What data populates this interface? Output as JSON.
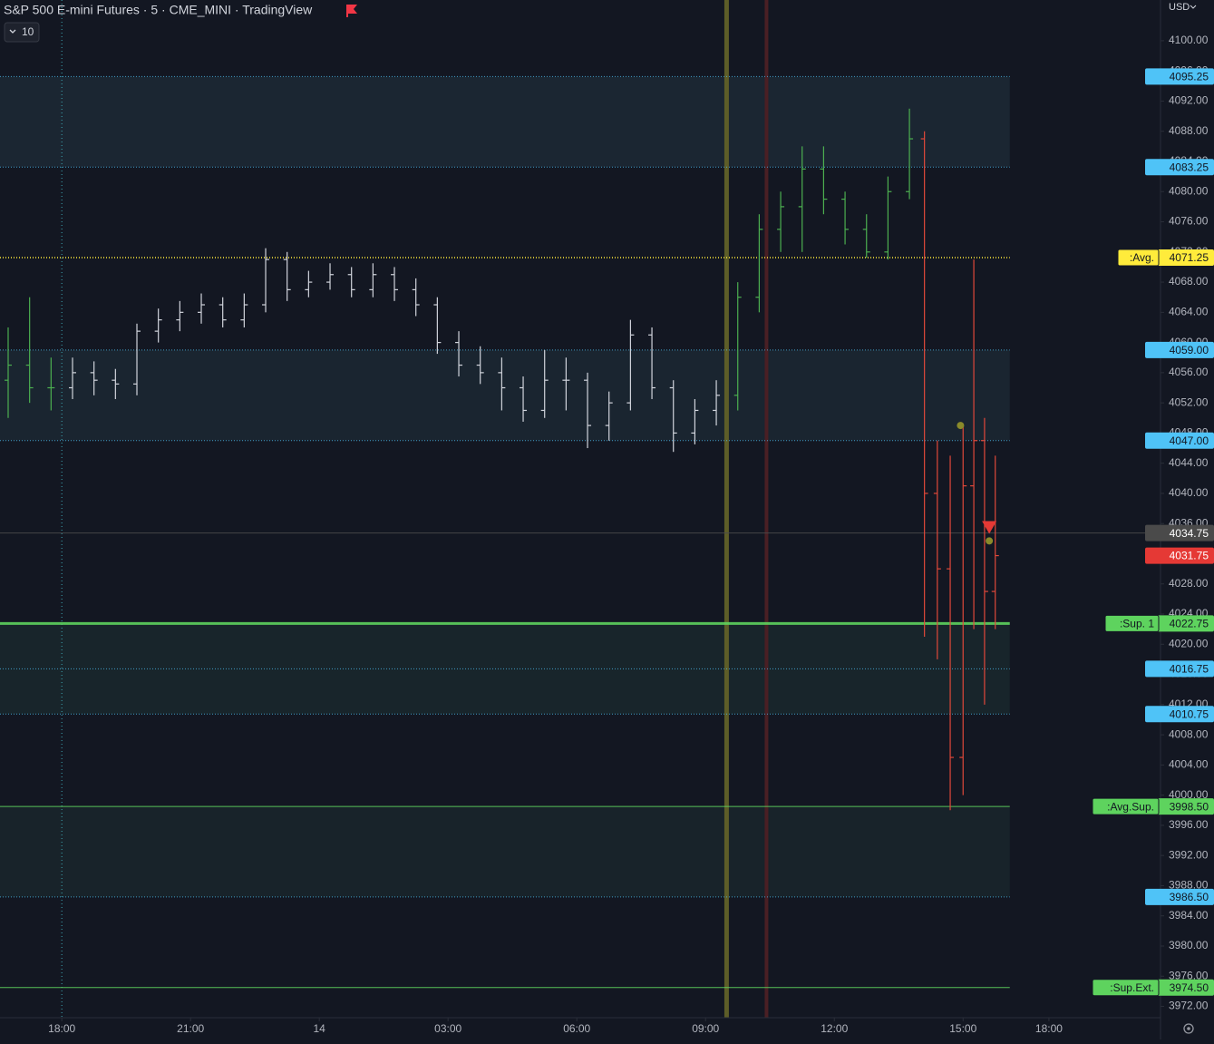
{
  "chart_data": {
    "type": "ohlc",
    "title": "S&P 500 E-mini Futures · 5 · CME_MINI · TradingView",
    "interval_button": "10",
    "currency": "USD",
    "xlim": [
      -1.44,
      25.6
    ],
    "ylim": [
      3970.5,
      4105.4
    ],
    "xticks": [
      {
        "value": 0,
        "label": "18:00"
      },
      {
        "value": 3,
        "label": "21:00"
      },
      {
        "value": 6,
        "label": "14"
      },
      {
        "value": 9,
        "label": "03:00"
      },
      {
        "value": 12,
        "label": "06:00"
      },
      {
        "value": 15,
        "label": "09:00"
      },
      {
        "value": 18,
        "label": "12:00"
      },
      {
        "value": 21,
        "label": "15:00"
      },
      {
        "value": 23,
        "label": "18:00"
      }
    ],
    "yticks": [
      {
        "value": 4100,
        "label": "4100.00"
      },
      {
        "value": 4096,
        "label": "4096.00"
      },
      {
        "value": 4092,
        "label": "4092.00"
      },
      {
        "value": 4088,
        "label": "4088.00"
      },
      {
        "value": 4084,
        "label": "4084.00"
      },
      {
        "value": 4080,
        "label": "4080.00"
      },
      {
        "value": 4076,
        "label": "4076.00"
      },
      {
        "value": 4072,
        "label": "4072.00"
      },
      {
        "value": 4068,
        "label": "4068.00"
      },
      {
        "value": 4064,
        "label": "4064.00"
      },
      {
        "value": 4060,
        "label": "4060.00"
      },
      {
        "value": 4056,
        "label": "4056.00"
      },
      {
        "value": 4052,
        "label": "4052.00"
      },
      {
        "value": 4048,
        "label": "4048.00"
      },
      {
        "value": 4044,
        "label": "4044.00"
      },
      {
        "value": 4040,
        "label": "4040.00"
      },
      {
        "value": 4036,
        "label": "4036.00"
      },
      {
        "value": 4032,
        "label": "4032.00"
      },
      {
        "value": 4028,
        "label": "4028.00"
      },
      {
        "value": 4024,
        "label": "4024.00"
      },
      {
        "value": 4020,
        "label": "4020.00"
      },
      {
        "value": 4016,
        "label": "4016.00"
      },
      {
        "value": 4012,
        "label": "4012.00"
      },
      {
        "value": 4008,
        "label": "4008.00"
      },
      {
        "value": 4004,
        "label": "4004.00"
      },
      {
        "value": 4000,
        "label": "4000.00"
      },
      {
        "value": 3996,
        "label": "3996.00"
      },
      {
        "value": 3992,
        "label": "3992.00"
      },
      {
        "value": 3988,
        "label": "3988.00"
      },
      {
        "value": 3984,
        "label": "3984.00"
      },
      {
        "value": 3980,
        "label": "3980.00"
      },
      {
        "value": 3976,
        "label": "3976.00"
      },
      {
        "value": 3972,
        "label": "3972.00"
      }
    ],
    "series": [
      {
        "color": "#4caf50",
        "x": [
          -1.25,
          -0.75,
          -0.25
        ],
        "open": [
          4055,
          4057,
          4054
        ],
        "high": [
          4062,
          4066,
          4058
        ],
        "low": [
          4050,
          4052,
          4051
        ],
        "close": [
          4057,
          4054,
          4054
        ]
      },
      {
        "color": "#d1d4dc",
        "x": [
          0.25,
          0.75,
          1.25,
          1.75,
          2.25,
          2.75,
          3.25,
          3.75,
          4.25,
          4.75,
          5.25,
          5.75,
          6.25,
          6.75,
          7.25,
          7.75,
          8.25,
          8.75,
          9.25,
          9.75,
          10.25,
          10.75,
          11.25,
          11.75,
          12.25,
          12.75,
          13.25,
          13.75,
          14.25,
          14.75,
          15.25
        ],
        "open": [
          4054,
          4056,
          4055,
          4054.5,
          4061.5,
          4063,
          4064,
          4065,
          4063,
          4065,
          4071,
          4067,
          4068,
          4069,
          4067,
          4069,
          4067,
          4065,
          4060,
          4057,
          4056,
          4054,
          4051,
          4055,
          4055,
          4049,
          4052,
          4061,
          4054,
          4048,
          4051
        ],
        "high": [
          4058,
          4057.5,
          4056.5,
          4062.5,
          4064.5,
          4065.5,
          4066.5,
          4066,
          4066.5,
          4072.5,
          4072,
          4069.5,
          4070.5,
          4070,
          4070.5,
          4070,
          4068.5,
          4066,
          4061.5,
          4059.5,
          4058,
          4055.5,
          4059,
          4058,
          4056,
          4053.5,
          4063,
          4062,
          4055,
          4052.5,
          4055
        ],
        "low": [
          4052.5,
          4053,
          4052.5,
          4053,
          4060,
          4061.5,
          4062.5,
          4062,
          4062,
          4064,
          4065.5,
          4066,
          4067,
          4066,
          4066,
          4065.5,
          4063.5,
          4058.5,
          4055.5,
          4054.5,
          4051,
          4049.5,
          4050,
          4051,
          4046,
          4047,
          4051,
          4052.5,
          4045.5,
          4046.5,
          4049
        ],
        "close": [
          4056,
          4055,
          4054.5,
          4061.5,
          4063,
          4064,
          4065,
          4063,
          4065,
          4071,
          4067,
          4068,
          4069,
          4067,
          4069,
          4067,
          4065,
          4060,
          4057,
          4056,
          4054,
          4051,
          4055,
          4055,
          4049,
          4052,
          4061,
          4054,
          4048,
          4051,
          4053
        ]
      },
      {
        "color": "#4caf50",
        "x": [
          15.75,
          16.25,
          16.75,
          17.25,
          17.75,
          18.25,
          18.75,
          19.25,
          19.75
        ],
        "open": [
          4053,
          4066,
          4075,
          4078,
          4083,
          4079,
          4075,
          4072,
          4080
        ],
        "high": [
          4068,
          4077,
          4080,
          4086,
          4086,
          4080,
          4077,
          4082,
          4091
        ],
        "low": [
          4051,
          4064,
          4072,
          4072,
          4077,
          4073,
          4071.25,
          4071,
          4079
        ],
        "close": [
          4066,
          4075,
          4078,
          4083,
          4079,
          4075,
          4072,
          4080,
          4087
        ]
      },
      {
        "color": "#e0483a",
        "x": [
          20.1,
          20.4,
          20.7,
          21.0,
          21.25,
          21.5,
          21.75
        ],
        "open": [
          4087,
          4040,
          4030,
          4005,
          4041,
          4047,
          4027
        ],
        "high": [
          4088,
          4047,
          4045,
          4049,
          4071,
          4050,
          4045
        ],
        "low": [
          4021,
          4018,
          3998,
          4000,
          4022,
          4012,
          4022
        ],
        "close": [
          4040,
          4030,
          4005,
          4041,
          4047,
          4027,
          4031.75
        ]
      }
    ],
    "bands": [
      {
        "from": 4083.25,
        "to": 4095.25,
        "color": "#1b2632"
      },
      {
        "from": 4047,
        "to": 4059,
        "color": "#1a2530"
      },
      {
        "from": 4010.75,
        "to": 4022.75,
        "color": "#18252b"
      },
      {
        "from": 3986.5,
        "to": 3998.5,
        "color": "#18232a"
      }
    ],
    "vlines": [
      {
        "x": 0,
        "color": "#3fa9b5",
        "style": "dotted",
        "width": 1
      },
      {
        "x": 15.49,
        "color": "#5d5d28",
        "style": "solid",
        "width": 5
      },
      {
        "x": 16.42,
        "color": "#4a1f24",
        "style": "solid",
        "width": 4
      }
    ],
    "levels": [
      {
        "value": 4095.25,
        "label": "4095.25",
        "color": "#4fc3f7",
        "text_color": "#131722",
        "style": "dotted",
        "width": 1
      },
      {
        "value": 4083.25,
        "label": "4083.25",
        "color": "#4fc3f7",
        "text_color": "#131722",
        "style": "dotted",
        "width": 1
      },
      {
        "value": 4071.25,
        "label": "4071.25",
        "tag": ":Avg.",
        "color": "#ffeb3b",
        "text_color": "#131722",
        "style": "dotted",
        "width": 2
      },
      {
        "value": 4059,
        "label": "4059.00",
        "color": "#4fc3f7",
        "text_color": "#131722",
        "style": "dotted",
        "width": 1
      },
      {
        "value": 4047,
        "label": "4047.00",
        "color": "#4fc3f7",
        "text_color": "#131722",
        "style": "dotted",
        "width": 1
      },
      {
        "value": 4034.75,
        "label": "4034.75",
        "color": "#4a4a4a",
        "text_color": "#ffffff",
        "style": "solid",
        "width": 1
      },
      {
        "value": 4031.75,
        "label": "4031.75",
        "color": "#e53935",
        "text_color": "#ffffff",
        "style": "none",
        "width": 0
      },
      {
        "value": 4022.75,
        "label": "4022.75",
        "tag": ":Sup. 1",
        "color": "#5ed35e",
        "text_color": "#131722",
        "style": "solid",
        "width": 3
      },
      {
        "value": 4016.75,
        "label": "4016.75",
        "color": "#4fc3f7",
        "text_color": "#131722",
        "style": "dotted",
        "width": 1
      },
      {
        "value": 4010.75,
        "label": "4010.75",
        "color": "#4fc3f7",
        "text_color": "#131722",
        "style": "dotted",
        "width": 1
      },
      {
        "value": 3998.5,
        "label": "3998.50",
        "tag": ":Avg.Sup.",
        "color": "#5ed35e",
        "text_color": "#131722",
        "style": "solid",
        "width": 1
      },
      {
        "value": 3986.5,
        "label": "3986.50",
        "color": "#4fc3f7",
        "text_color": "#131722",
        "style": "dotted",
        "width": 1
      },
      {
        "value": 3974.5,
        "label": "3974.50",
        "tag": ":Sup.Ext.",
        "color": "#5ed35e",
        "text_color": "#131722",
        "style": "solid",
        "width": 1
      }
    ],
    "markers": [
      {
        "x": 20.94,
        "y": 4049,
        "shape": "dot",
        "color": "#8a8a2a"
      },
      {
        "x": 21.61,
        "y": 4035,
        "shape": "triangle",
        "color": "#e53935"
      },
      {
        "x": 21.61,
        "y": 4033.7,
        "shape": "dot",
        "color": "#8a8a2a"
      }
    ]
  }
}
